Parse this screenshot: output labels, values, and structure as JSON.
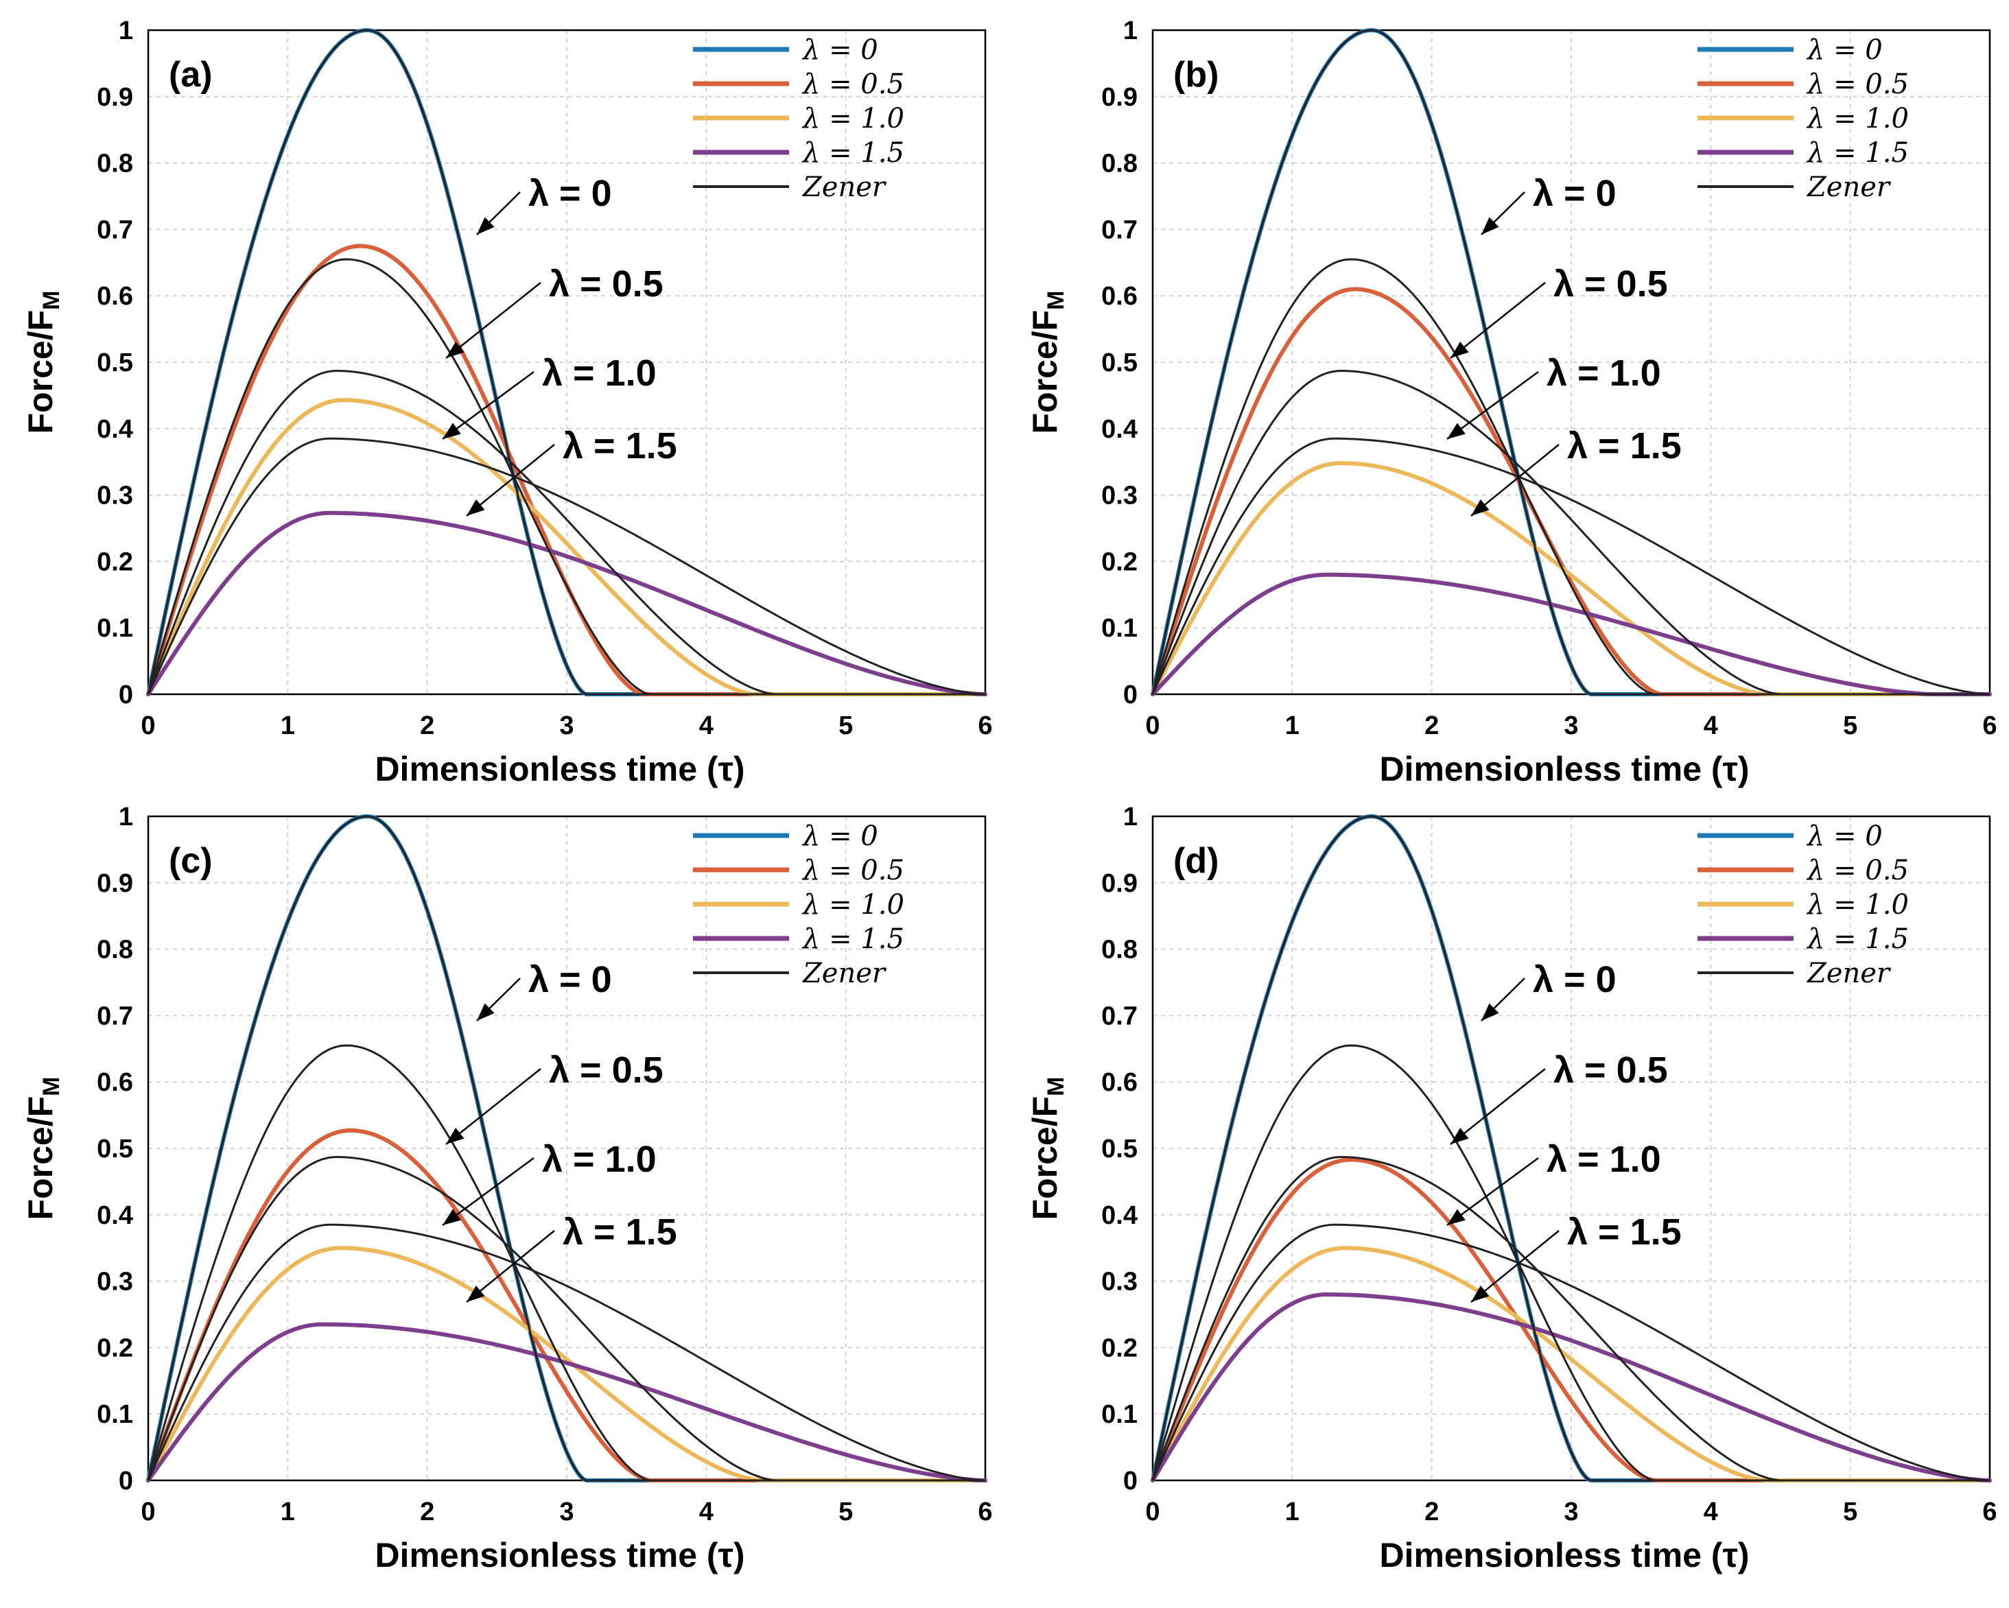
{
  "figure": {
    "ylabel_main": "Force/F",
    "ylabel_sub": "M",
    "xlabel": "Dimensionless time (τ)"
  },
  "colors": {
    "lambda_0": "#1f77b4",
    "lambda_0.5": "#d9603b",
    "lambda_1.0": "#edb85a",
    "lambda_1.5": "#7d3e8d",
    "zener": "#222222"
  },
  "chart_data": [
    {
      "panel": "(a)",
      "type": "line",
      "xlabel": "Dimensionless time (τ)",
      "ylabel": "Force/FM",
      "xlim": [
        0,
        6
      ],
      "ylim": [
        0,
        1
      ],
      "xticks": [
        "0",
        "1",
        "2",
        "3",
        "4",
        "5",
        "6"
      ],
      "yticks": [
        "0",
        "0.1",
        "0.2",
        "0.3",
        "0.4",
        "0.5",
        "0.6",
        "0.7",
        "0.8",
        "0.9",
        "1"
      ],
      "grid": true,
      "legend_position": "top-right",
      "legend": [
        "λ = 0",
        "λ = 0.5",
        "λ = 1.0",
        "λ = 1.5",
        "Zener"
      ],
      "series": [
        {
          "name": "λ = 0",
          "color": "#1f77b4",
          "peak": 1.0,
          "peak_x": 1.57,
          "end_x": 3.14
        },
        {
          "name": "λ = 0.5",
          "color": "#d9603b",
          "peak": 0.675,
          "peak_x": 1.52,
          "end_x": 3.55
        },
        {
          "name": "λ = 1.0",
          "color": "#edb85a",
          "peak": 0.443,
          "peak_x": 1.4,
          "end_x": 4.35
        },
        {
          "name": "λ = 1.5",
          "color": "#7d3e8d",
          "peak": 0.273,
          "peak_x": 1.3,
          "end_x": 6.0
        }
      ],
      "zener": [
        {
          "label": "λ = 0",
          "peak": 1.0,
          "peak_x": 1.57,
          "end_x": 3.14
        },
        {
          "label": "λ = 0.5",
          "peak": 0.655,
          "peak_x": 1.42,
          "end_x": 3.6
        },
        {
          "label": "λ = 1.0",
          "peak": 0.487,
          "peak_x": 1.35,
          "end_x": 4.5
        },
        {
          "label": "λ = 1.5",
          "peak": 0.385,
          "peak_x": 1.3,
          "end_x": 6.0
        }
      ],
      "annotations": [
        "λ = 0",
        "λ = 0.5",
        "λ = 1.0",
        "λ = 1.5"
      ]
    },
    {
      "panel": "(b)",
      "type": "line",
      "xlabel": "Dimensionless time (τ)",
      "ylabel": "Force/FM",
      "xlim": [
        0,
        6
      ],
      "ylim": [
        0,
        1
      ],
      "xticks": [
        "0",
        "1",
        "2",
        "3",
        "4",
        "5",
        "6"
      ],
      "yticks": [
        "0",
        "0.1",
        "0.2",
        "0.3",
        "0.4",
        "0.5",
        "0.6",
        "0.7",
        "0.8",
        "0.9",
        "1"
      ],
      "grid": true,
      "legend_position": "top-right",
      "legend": [
        "λ = 0",
        "λ = 0.5",
        "λ = 1.0",
        "λ = 1.5",
        "Zener"
      ],
      "series": [
        {
          "name": "λ = 0",
          "color": "#1f77b4",
          "peak": 1.0,
          "peak_x": 1.57,
          "end_x": 3.14
        },
        {
          "name": "λ = 0.5",
          "color": "#d9603b",
          "peak": 0.61,
          "peak_x": 1.45,
          "end_x": 3.65
        },
        {
          "name": "λ = 1.0",
          "color": "#edb85a",
          "peak": 0.348,
          "peak_x": 1.35,
          "end_x": 4.4
        },
        {
          "name": "λ = 1.5",
          "color": "#7d3e8d",
          "peak": 0.18,
          "peak_x": 1.25,
          "end_x": 5.6
        }
      ],
      "zener": [
        {
          "label": "λ = 0",
          "peak": 1.0,
          "peak_x": 1.57,
          "end_x": 3.14
        },
        {
          "label": "λ = 0.5",
          "peak": 0.655,
          "peak_x": 1.42,
          "end_x": 3.6
        },
        {
          "label": "λ = 1.0",
          "peak": 0.487,
          "peak_x": 1.35,
          "end_x": 4.5
        },
        {
          "label": "λ = 1.5",
          "peak": 0.385,
          "peak_x": 1.3,
          "end_x": 6.0
        }
      ],
      "annotations": [
        "λ = 0",
        "λ = 0.5",
        "λ = 1.0",
        "λ = 1.5"
      ]
    },
    {
      "panel": "(c)",
      "type": "line",
      "xlabel": "Dimensionless time (τ)",
      "ylabel": "Force/FM",
      "xlim": [
        0,
        6
      ],
      "ylim": [
        0,
        1
      ],
      "xticks": [
        "0",
        "1",
        "2",
        "3",
        "4",
        "5",
        "6"
      ],
      "yticks": [
        "0",
        "0.1",
        "0.2",
        "0.3",
        "0.4",
        "0.5",
        "0.6",
        "0.7",
        "0.8",
        "0.9",
        "1"
      ],
      "grid": true,
      "legend_position": "top-right",
      "legend": [
        "λ = 0",
        "λ = 0.5",
        "λ = 1.0",
        "λ = 1.5",
        "Zener"
      ],
      "series": [
        {
          "name": "λ = 0",
          "color": "#1f77b4",
          "peak": 1.0,
          "peak_x": 1.57,
          "end_x": 3.14
        },
        {
          "name": "λ = 0.5",
          "color": "#d9603b",
          "peak": 0.527,
          "peak_x": 1.45,
          "end_x": 3.6
        },
        {
          "name": "λ = 1.0",
          "color": "#edb85a",
          "peak": 0.35,
          "peak_x": 1.38,
          "end_x": 4.4
        },
        {
          "name": "λ = 1.5",
          "color": "#7d3e8d",
          "peak": 0.235,
          "peak_x": 1.25,
          "end_x": 6.0
        }
      ],
      "zener": [
        {
          "label": "λ = 0",
          "peak": 1.0,
          "peak_x": 1.57,
          "end_x": 3.14
        },
        {
          "label": "λ = 0.5",
          "peak": 0.655,
          "peak_x": 1.42,
          "end_x": 3.6
        },
        {
          "label": "λ = 1.0",
          "peak": 0.487,
          "peak_x": 1.35,
          "end_x": 4.5
        },
        {
          "label": "λ = 1.5",
          "peak": 0.385,
          "peak_x": 1.3,
          "end_x": 6.0
        }
      ],
      "annotations": [
        "λ = 0",
        "λ = 0.5",
        "λ = 1.0",
        "λ = 1.5"
      ]
    },
    {
      "panel": "(d)",
      "type": "line",
      "xlabel": "Dimensionless time (τ)",
      "ylabel": "Force/FM",
      "xlim": [
        0,
        6
      ],
      "ylim": [
        0,
        1
      ],
      "xticks": [
        "0",
        "1",
        "2",
        "3",
        "4",
        "5",
        "6"
      ],
      "yticks": [
        "0",
        "0.1",
        "0.2",
        "0.3",
        "0.4",
        "0.5",
        "0.6",
        "0.7",
        "0.8",
        "0.9",
        "1"
      ],
      "grid": true,
      "legend_position": "top-right",
      "legend": [
        "λ = 0",
        "λ = 0.5",
        "λ = 1.0",
        "λ = 1.5",
        "Zener"
      ],
      "series": [
        {
          "name": "λ = 0",
          "color": "#1f77b4",
          "peak": 1.0,
          "peak_x": 1.57,
          "end_x": 3.14
        },
        {
          "name": "λ = 0.5",
          "color": "#d9603b",
          "peak": 0.483,
          "peak_x": 1.42,
          "end_x": 3.6
        },
        {
          "name": "λ = 1.0",
          "color": "#edb85a",
          "peak": 0.35,
          "peak_x": 1.38,
          "end_x": 4.4
        },
        {
          "name": "λ = 1.5",
          "color": "#7d3e8d",
          "peak": 0.28,
          "peak_x": 1.25,
          "end_x": 6.0
        }
      ],
      "zener": [
        {
          "label": "λ = 0",
          "peak": 1.0,
          "peak_x": 1.57,
          "end_x": 3.14
        },
        {
          "label": "λ = 0.5",
          "peak": 0.655,
          "peak_x": 1.42,
          "end_x": 3.6
        },
        {
          "label": "λ = 1.0",
          "peak": 0.487,
          "peak_x": 1.35,
          "end_x": 4.5
        },
        {
          "label": "λ = 1.5",
          "peak": 0.385,
          "peak_x": 1.3,
          "end_x": 6.0
        }
      ],
      "annotations": [
        "λ = 0",
        "λ = 0.5",
        "λ = 1.0",
        "λ = 1.5"
      ]
    }
  ]
}
